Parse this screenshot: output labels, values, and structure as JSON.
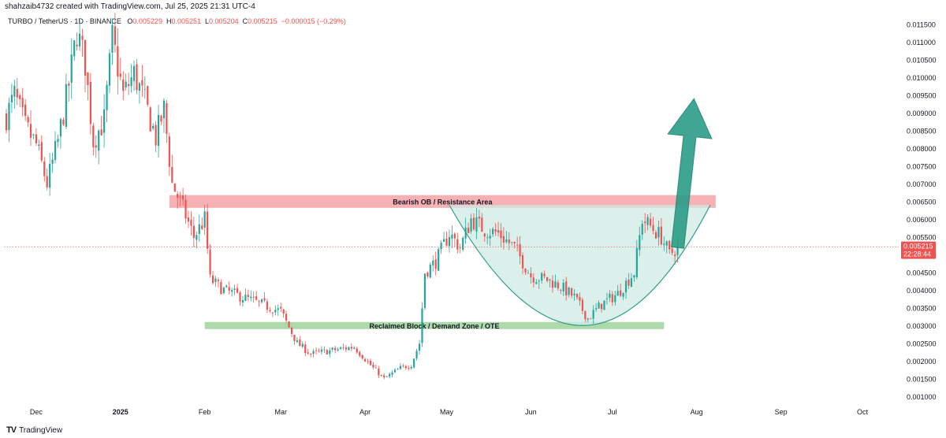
{
  "header": {
    "attribution": "shahzaib4732 created with TradingView.com, Jul 25, 2025 21:31 UTC-4"
  },
  "legend": {
    "symbol": "TURBO / TetherUS · 1D · BINANCE",
    "o_label": "O",
    "o_value": "0.005229",
    "h_label": "H",
    "h_value": "0.005251",
    "l_label": "L",
    "l_value": "0.005204",
    "c_label": "C",
    "c_value": "0.005215",
    "change": "−0.000015 (−0.29%)"
  },
  "price_tag": {
    "price": "0.005215",
    "countdown": "22:28:44"
  },
  "footer": {
    "brand": "TradingView",
    "logo_mark": "TV"
  },
  "colors": {
    "up": "#26a69a",
    "down": "#ef5350",
    "resistance": "#f5a3a8",
    "demand": "#9fd49b",
    "cup_fill": "#cfe9e4",
    "cup_line": "#2e9e88",
    "arrow": "#2a9d87",
    "price_line": "#ef5350"
  },
  "chart_data": {
    "type": "candlestick",
    "y_axis_ticks": [
      "0.011500",
      "0.011000",
      "0.010500",
      "0.010000",
      "0.009500",
      "0.009000",
      "0.008500",
      "0.008000",
      "0.007500",
      "0.007000",
      "0.006500",
      "0.006000",
      "0.005500",
      "0.005000",
      "0.004500",
      "0.004000",
      "0.003500",
      "0.003000",
      "0.002500",
      "0.002000",
      "0.001500",
      "0.001000"
    ],
    "x_axis_ticks": [
      "Dec",
      "2025",
      "Feb",
      "Mar",
      "Apr",
      "May",
      "Jun",
      "Jul",
      "Aug",
      "Sep",
      "Oct"
    ],
    "ylim": [
      0.00085,
      0.01185
    ],
    "zones": [
      {
        "label": "Bearish OB / Resistance Area",
        "low": 0.00632,
        "high": 0.00668,
        "x_start": "2025-01-19",
        "x_end": "2025-08-08"
      },
      {
        "label": "Reclaimed Block / Demand Zone / OTE",
        "low": 0.0029,
        "high": 0.0031,
        "x_start": "2025-02-01",
        "x_end": "2025-07-20"
      }
    ],
    "close_series": [
      {
        "x": "2024-11-20",
        "y": 0.0089
      },
      {
        "x": "2024-11-23",
        "y": 0.0095
      },
      {
        "x": "2024-11-27",
        "y": 0.0086
      },
      {
        "x": "2024-12-01",
        "y": 0.0081
      },
      {
        "x": "2024-12-05",
        "y": 0.007
      },
      {
        "x": "2024-12-09",
        "y": 0.0082
      },
      {
        "x": "2024-12-13",
        "y": 0.0098
      },
      {
        "x": "2024-12-16",
        "y": 0.0113
      },
      {
        "x": "2024-12-19",
        "y": 0.0104
      },
      {
        "x": "2024-12-22",
        "y": 0.0082
      },
      {
        "x": "2024-12-26",
        "y": 0.0088
      },
      {
        "x": "2024-12-29",
        "y": 0.0111
      },
      {
        "x": "2025-01-02",
        "y": 0.0095
      },
      {
        "x": "2025-01-06",
        "y": 0.0101
      },
      {
        "x": "2025-01-10",
        "y": 0.0093
      },
      {
        "x": "2025-01-14",
        "y": 0.0083
      },
      {
        "x": "2025-01-17",
        "y": 0.0091
      },
      {
        "x": "2025-01-20",
        "y": 0.007
      },
      {
        "x": "2025-01-24",
        "y": 0.0063
      },
      {
        "x": "2025-01-28",
        "y": 0.0055
      },
      {
        "x": "2025-02-01",
        "y": 0.006
      },
      {
        "x": "2025-02-03",
        "y": 0.0043
      },
      {
        "x": "2025-02-08",
        "y": 0.004
      },
      {
        "x": "2025-02-15",
        "y": 0.0038
      },
      {
        "x": "2025-02-22",
        "y": 0.0036
      },
      {
        "x": "2025-03-01",
        "y": 0.0034
      },
      {
        "x": "2025-03-07",
        "y": 0.0025
      },
      {
        "x": "2025-03-12",
        "y": 0.0022
      },
      {
        "x": "2025-03-20",
        "y": 0.0023
      },
      {
        "x": "2025-03-28",
        "y": 0.0024
      },
      {
        "x": "2025-04-04",
        "y": 0.0018
      },
      {
        "x": "2025-04-08",
        "y": 0.0015
      },
      {
        "x": "2025-04-14",
        "y": 0.0018
      },
      {
        "x": "2025-04-18",
        "y": 0.0019
      },
      {
        "x": "2025-04-21",
        "y": 0.0025
      },
      {
        "x": "2025-04-23",
        "y": 0.0045
      },
      {
        "x": "2025-04-27",
        "y": 0.0048
      },
      {
        "x": "2025-05-02",
        "y": 0.0056
      },
      {
        "x": "2025-05-06",
        "y": 0.0052
      },
      {
        "x": "2025-05-10",
        "y": 0.006
      },
      {
        "x": "2025-05-15",
        "y": 0.0057
      },
      {
        "x": "2025-05-20",
        "y": 0.0056
      },
      {
        "x": "2025-05-26",
        "y": 0.0052
      },
      {
        "x": "2025-06-01",
        "y": 0.0044
      },
      {
        "x": "2025-06-07",
        "y": 0.0043
      },
      {
        "x": "2025-06-12",
        "y": 0.0041
      },
      {
        "x": "2025-06-17",
        "y": 0.0038
      },
      {
        "x": "2025-06-22",
        "y": 0.0032
      },
      {
        "x": "2025-06-27",
        "y": 0.0036
      },
      {
        "x": "2025-07-03",
        "y": 0.0039
      },
      {
        "x": "2025-07-09",
        "y": 0.0045
      },
      {
        "x": "2025-07-12",
        "y": 0.006
      },
      {
        "x": "2025-07-15",
        "y": 0.0058
      },
      {
        "x": "2025-07-19",
        "y": 0.0055
      },
      {
        "x": "2025-07-22",
        "y": 0.005
      },
      {
        "x": "2025-07-25",
        "y": 0.005215
      }
    ],
    "cup": {
      "left": {
        "x": "2025-05-02",
        "y": 0.0064
      },
      "bottom": {
        "x": "2025-06-20",
        "y": 0.003
      },
      "right": {
        "x": "2025-08-06",
        "y": 0.0064
      }
    },
    "arrow": {
      "from": {
        "x": "2025-07-25",
        "y": 0.0052
      },
      "to": {
        "x": "2025-07-31",
        "y": 0.0094
      }
    },
    "last_price": 0.005215
  }
}
